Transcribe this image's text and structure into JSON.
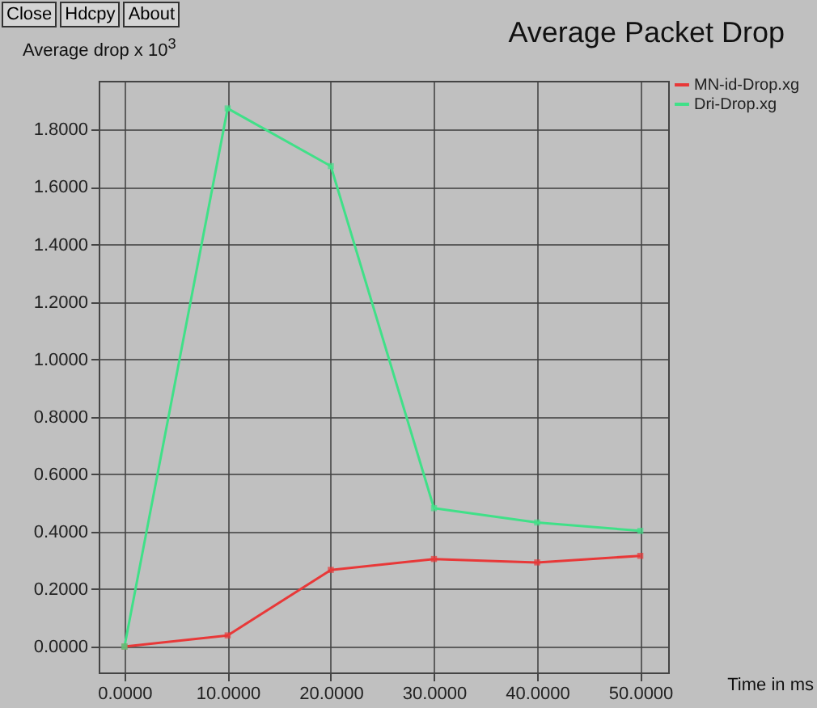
{
  "chart_data": {
    "type": "line",
    "title": "Average Packet Drop",
    "xlabel": "Time in ms",
    "ylabel": "Average drop x 10$^{3}$",
    "annotations": [
      "Close",
      "Hdcpy",
      "About"
    ],
    "x": [
      0,
      10,
      20,
      30,
      40,
      50
    ],
    "series": [
      {
        "name": "MN-id-Drop.xg",
        "color": "#e83838",
        "values": [
          0,
          0.039,
          0.267,
          0.305,
          0.293,
          0.316
        ]
      },
      {
        "name": "Dri-Drop.xg",
        "color": "#40e088",
        "values": [
          0,
          1.874,
          1.673,
          0.482,
          0.432,
          0.403
        ]
      }
    ],
    "xlim": [
      -2.5,
      52.7
    ],
    "ylim": [
      -0.09,
      1.97
    ],
    "xticks": [
      {
        "value": 0,
        "label": "0.0000"
      },
      {
        "value": 10,
        "label": "10.0000"
      },
      {
        "value": 20,
        "label": "20.0000"
      },
      {
        "value": 30,
        "label": "30.0000"
      },
      {
        "value": 40,
        "label": "40.0000"
      },
      {
        "value": 50,
        "label": "50.0000"
      }
    ],
    "yticks": [
      {
        "value": 0,
        "label": "0.0000"
      },
      {
        "value": 0.2,
        "label": "0.2000"
      },
      {
        "value": 0.4,
        "label": "0.4000"
      },
      {
        "value": 0.6,
        "label": "0.6000"
      },
      {
        "value": 0.8,
        "label": "0.8000"
      },
      {
        "value": 1,
        "label": "1.0000"
      },
      {
        "value": 1.2,
        "label": "1.2000"
      },
      {
        "value": 1.4,
        "label": "1.4000"
      },
      {
        "value": 1.6,
        "label": "1.6000"
      },
      {
        "value": 1.8,
        "label": "1.8000"
      }
    ],
    "grid": true,
    "legend": "top right",
    "marker": "square",
    "line_style": "solid"
  }
}
